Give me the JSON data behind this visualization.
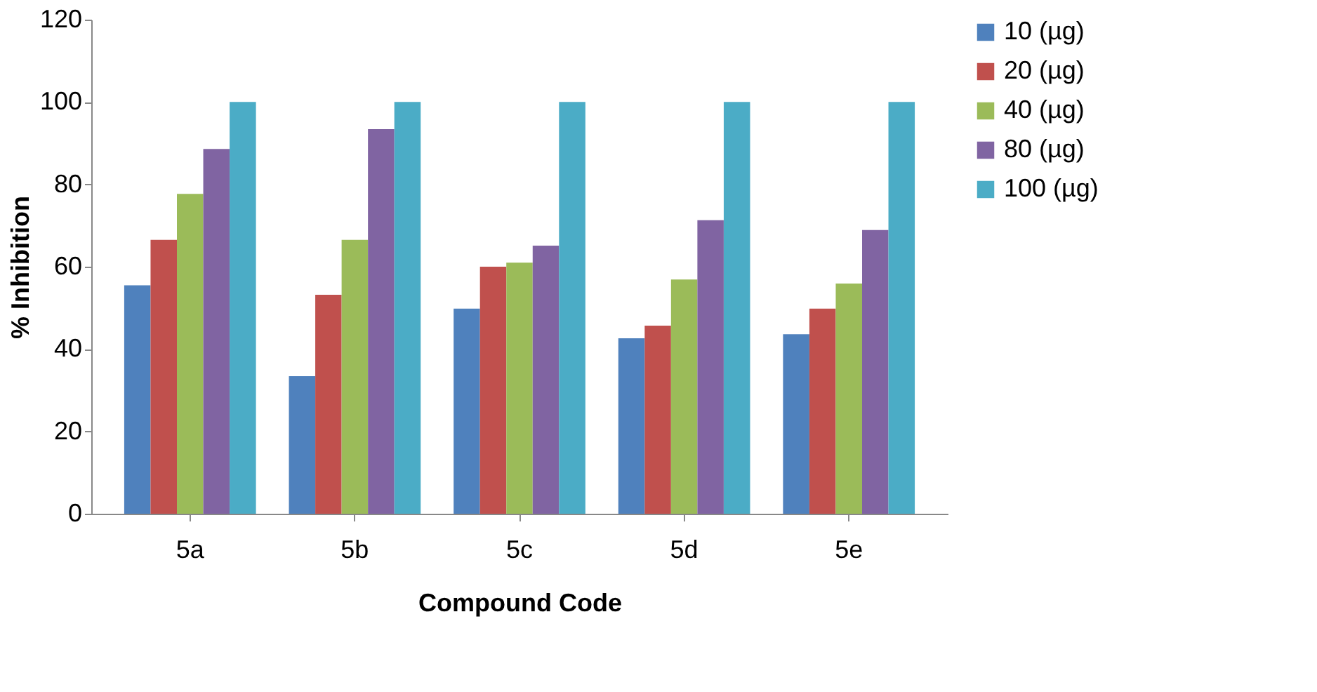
{
  "chart_data": {
    "type": "bar",
    "xlabel": "Compound Code",
    "ylabel": "% Inhibition",
    "categories": [
      "5a",
      "5b",
      "5c",
      "5d",
      "5e"
    ],
    "series": [
      {
        "name": "10  (µg)",
        "color": "#4f81bd",
        "values": [
          55.5,
          33.4,
          49.8,
          42.6,
          43.6
        ]
      },
      {
        "name": "20 (µg)",
        "color": "#c0504d",
        "values": [
          66.5,
          53.2,
          60,
          45.7,
          49.8
        ]
      },
      {
        "name": "40 (µg)",
        "color": "#9bbb59",
        "values": [
          77.7,
          66.5,
          61,
          56.9,
          55.9
        ]
      },
      {
        "name": "80 (µg)",
        "color": "#8064a2",
        "values": [
          88.6,
          93.4,
          65.1,
          71.3,
          68.9
        ]
      },
      {
        "name": "100 (µg)",
        "color": "#4bacc6",
        "values": [
          100,
          100,
          100,
          100,
          100
        ]
      }
    ],
    "ylim": [
      0,
      120
    ],
    "yticks": [
      0,
      20,
      40,
      60,
      80,
      100,
      120
    ],
    "grid": false,
    "legend": "right"
  }
}
